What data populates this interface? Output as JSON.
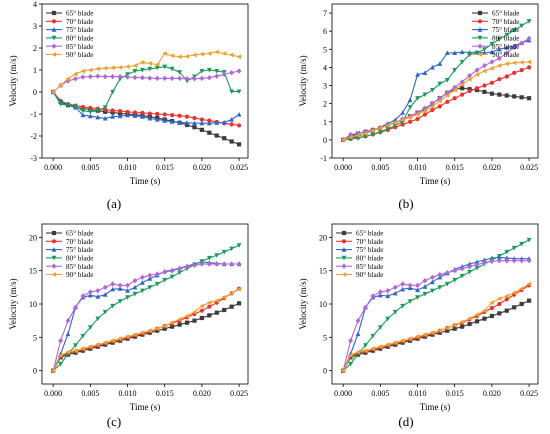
{
  "panel_labels": [
    "(a)",
    "(b)",
    "(c)",
    "(d)"
  ],
  "colors": {
    "65° blade": "#3c3c3c",
    "70° blade": "#e8322d",
    "75° blade": "#2f67c6",
    "80° blade": "#1a9a5a",
    "85° blade": "#b067d8",
    "90° blade": "#f0a030"
  },
  "chart_data": [
    {
      "type": "line",
      "xlabel": "Time (s)",
      "ylabel": "Velocity (m/s)",
      "xlim": [
        -0.0015,
        0.0262
      ],
      "ylim": [
        -3,
        4
      ],
      "xticks": [
        "0.000",
        "0.005",
        "0.010",
        "0.015",
        "0.020",
        "0.025"
      ],
      "yticks": [
        "-3",
        "-2",
        "-1",
        "0",
        "1",
        "2",
        "3",
        "4"
      ],
      "legend": "top-left",
      "x": [
        0,
        0.001,
        0.002,
        0.003,
        0.004,
        0.005,
        0.006,
        0.007,
        0.008,
        0.009,
        0.01,
        0.011,
        0.012,
        0.013,
        0.014,
        0.015,
        0.016,
        0.017,
        0.018,
        0.019,
        0.02,
        0.021,
        0.022,
        0.023,
        0.024,
        0.025
      ],
      "series": [
        {
          "name": "65° blade",
          "values": [
            0,
            -0.45,
            -0.6,
            -0.7,
            -0.75,
            -0.8,
            -0.85,
            -0.9,
            -0.93,
            -0.97,
            -1.0,
            -1.03,
            -1.07,
            -1.12,
            -1.18,
            -1.25,
            -1.32,
            -1.4,
            -1.5,
            -1.6,
            -1.72,
            -1.85,
            -1.98,
            -2.1,
            -2.25,
            -2.38
          ]
        },
        {
          "name": "70° blade",
          "values": [
            0,
            -0.4,
            -0.55,
            -0.62,
            -0.68,
            -0.72,
            -0.76,
            -0.8,
            -0.84,
            -0.87,
            -0.9,
            -0.93,
            -0.95,
            -0.98,
            -1.0,
            -1.02,
            -1.05,
            -1.08,
            -1.12,
            -1.18,
            -1.25,
            -1.3,
            -1.36,
            -1.42,
            -1.47,
            -1.52
          ]
        },
        {
          "name": "75° blade",
          "values": [
            0,
            -0.45,
            -0.55,
            -0.7,
            -1.05,
            -1.1,
            -1.15,
            -1.2,
            -1.12,
            -1.1,
            -1.05,
            -1.08,
            -1.12,
            -1.2,
            -1.25,
            -1.3,
            -1.35,
            -1.38,
            -1.4,
            -1.42,
            -1.42,
            -1.42,
            -1.4,
            -1.38,
            -1.25,
            -1.02
          ]
        },
        {
          "name": "80° blade",
          "values": [
            0,
            -0.55,
            -0.6,
            -0.65,
            -0.85,
            -0.9,
            -0.85,
            -0.7,
            0.0,
            0.6,
            0.8,
            0.95,
            1.0,
            1.05,
            1.1,
            1.15,
            1.05,
            0.9,
            0.5,
            0.7,
            0.95,
            1.0,
            0.95,
            0.9,
            0.02,
            0.02
          ]
        },
        {
          "name": "85° blade",
          "values": [
            0,
            0.3,
            0.5,
            0.6,
            0.68,
            0.7,
            0.72,
            0.7,
            0.7,
            0.7,
            0.68,
            0.66,
            0.65,
            0.63,
            0.62,
            0.62,
            0.62,
            0.62,
            0.6,
            0.6,
            0.62,
            0.65,
            0.72,
            0.8,
            0.88,
            0.95
          ]
        },
        {
          "name": "90° blade",
          "values": [
            0,
            0.3,
            0.6,
            0.82,
            0.95,
            1.0,
            1.05,
            1.08,
            1.1,
            1.12,
            1.15,
            1.2,
            1.35,
            1.3,
            1.25,
            1.75,
            1.65,
            1.6,
            1.62,
            1.68,
            1.72,
            1.75,
            1.82,
            1.75,
            1.68,
            1.6
          ]
        }
      ]
    },
    {
      "type": "line",
      "xlabel": "Time (s)",
      "ylabel": "Velocity (m/s)",
      "xlim": [
        -0.0015,
        0.0262
      ],
      "ylim": [
        -1,
        7.5
      ],
      "xticks": [
        "0.000",
        "0.005",
        "0.010",
        "0.015",
        "0.020",
        "0.025"
      ],
      "yticks": [
        "-1",
        "0",
        "1",
        "2",
        "3",
        "4",
        "5",
        "6",
        "7"
      ],
      "legend": "top-right",
      "x": [
        0,
        0.001,
        0.002,
        0.003,
        0.004,
        0.005,
        0.006,
        0.007,
        0.008,
        0.009,
        0.01,
        0.011,
        0.012,
        0.013,
        0.014,
        0.015,
        0.016,
        0.017,
        0.018,
        0.019,
        0.02,
        0.021,
        0.022,
        0.023,
        0.024,
        0.025
      ],
      "series": [
        {
          "name": "65° blade",
          "values": [
            0,
            0.2,
            0.35,
            0.45,
            0.55,
            0.65,
            0.8,
            0.95,
            1.1,
            1.3,
            1.5,
            1.7,
            2.0,
            2.3,
            2.6,
            2.8,
            2.85,
            2.8,
            2.75,
            2.65,
            2.55,
            2.5,
            2.45,
            2.4,
            2.35,
            2.3
          ]
        },
        {
          "name": "70° blade",
          "values": [
            0,
            0.05,
            0.12,
            0.2,
            0.3,
            0.42,
            0.55,
            0.7,
            0.85,
            1.0,
            1.15,
            1.4,
            1.65,
            1.85,
            2.1,
            2.3,
            2.5,
            2.7,
            2.85,
            3.0,
            3.15,
            3.35,
            3.5,
            3.7,
            3.85,
            4.0
          ]
        },
        {
          "name": "75° blade",
          "values": [
            0,
            0.1,
            0.2,
            0.35,
            0.5,
            0.7,
            0.9,
            1.1,
            1.5,
            2.2,
            3.6,
            3.7,
            4.0,
            4.2,
            4.8,
            4.8,
            4.85,
            4.82,
            4.85,
            4.8,
            4.85,
            5.0,
            5.1,
            5.2,
            5.35,
            5.5
          ]
        },
        {
          "name": "80° blade",
          "values": [
            0,
            0.05,
            0.1,
            0.2,
            0.3,
            0.45,
            0.6,
            0.8,
            1.0,
            1.8,
            2.3,
            2.5,
            2.75,
            3.1,
            3.3,
            3.85,
            4.3,
            4.7,
            4.8,
            5.0,
            5.3,
            5.55,
            5.8,
            6.05,
            6.3,
            6.55
          ]
        },
        {
          "name": "85° blade",
          "values": [
            0,
            0.3,
            0.35,
            0.45,
            0.55,
            0.65,
            0.8,
            0.95,
            1.15,
            1.3,
            1.5,
            1.75,
            2.0,
            2.3,
            2.6,
            2.9,
            3.2,
            3.55,
            3.85,
            4.1,
            4.3,
            4.5,
            4.8,
            5.1,
            5.35,
            5.6
          ]
        },
        {
          "name": "90° blade",
          "values": [
            0,
            0.15,
            0.25,
            0.35,
            0.5,
            0.65,
            0.8,
            0.95,
            1.1,
            1.25,
            1.4,
            1.6,
            1.85,
            2.15,
            2.45,
            2.75,
            3.05,
            3.35,
            3.6,
            3.8,
            3.95,
            4.1,
            4.2,
            4.25,
            4.28,
            4.3
          ]
        }
      ]
    },
    {
      "type": "line",
      "xlabel": "Time (s)",
      "ylabel": "Velocity (m/s)",
      "xlim": [
        -0.0015,
        0.0262
      ],
      "ylim": [
        -2,
        22
      ],
      "xticks": [
        "0.000",
        "0.005",
        "0.010",
        "0.015",
        "0.020",
        "0.025"
      ],
      "yticks": [
        "0",
        "5",
        "10",
        "15",
        "20"
      ],
      "legend": "top-left",
      "x": [
        0,
        0.001,
        0.002,
        0.003,
        0.004,
        0.005,
        0.006,
        0.007,
        0.008,
        0.009,
        0.01,
        0.011,
        0.012,
        0.013,
        0.014,
        0.015,
        0.016,
        0.017,
        0.018,
        0.019,
        0.02,
        0.021,
        0.022,
        0.023,
        0.024,
        0.025
      ],
      "series": [
        {
          "name": "65° blade",
          "values": [
            0,
            2.0,
            2.4,
            2.7,
            3.0,
            3.3,
            3.6,
            3.9,
            4.2,
            4.5,
            4.8,
            5.1,
            5.4,
            5.7,
            6.0,
            6.3,
            6.6,
            6.9,
            7.2,
            7.5,
            7.9,
            8.3,
            8.7,
            9.1,
            9.6,
            10.1
          ]
        },
        {
          "name": "70° blade",
          "values": [
            0,
            2.2,
            2.6,
            2.9,
            3.2,
            3.5,
            3.8,
            4.1,
            4.4,
            4.7,
            5.0,
            5.3,
            5.6,
            5.9,
            6.3,
            6.7,
            7.1,
            7.5,
            8.0,
            8.5,
            9.0,
            9.6,
            10.2,
            10.9,
            11.6,
            12.3
          ]
        },
        {
          "name": "75° blade",
          "values": [
            0,
            2.5,
            5.5,
            9.5,
            11.0,
            11.3,
            11.1,
            11.4,
            12.2,
            12.3,
            12.0,
            12.5,
            13.2,
            13.8,
            14.3,
            14.9,
            15.1,
            15.4,
            15.7,
            16.0,
            16.3,
            16.2,
            16.1,
            16.0,
            16.0,
            16.0
          ]
        },
        {
          "name": "80° blade",
          "values": [
            0,
            1.0,
            2.5,
            3.8,
            5.2,
            6.5,
            7.8,
            8.8,
            9.7,
            10.4,
            11.0,
            11.5,
            12.0,
            12.5,
            13.0,
            13.6,
            14.1,
            14.7,
            15.3,
            15.9,
            16.4,
            16.9,
            17.3,
            17.8,
            18.3,
            18.8
          ]
        },
        {
          "name": "85° blade",
          "values": [
            0,
            4.5,
            7.5,
            9.5,
            11.2,
            11.8,
            12.0,
            12.5,
            13.0,
            12.8,
            12.8,
            13.5,
            14.0,
            14.3,
            14.5,
            14.8,
            15.0,
            15.3,
            15.6,
            15.8,
            16.0,
            16.0,
            16.0,
            16.0,
            16.0,
            16.0
          ]
        },
        {
          "name": "90° blade",
          "values": [
            0,
            2.3,
            2.8,
            3.0,
            3.3,
            3.6,
            3.9,
            4.2,
            4.5,
            4.8,
            5.1,
            5.4,
            5.7,
            6.0,
            6.3,
            6.7,
            7.2,
            7.7,
            8.2,
            8.8,
            9.7,
            10.2,
            10.5,
            11.0,
            11.6,
            12.2
          ]
        }
      ]
    },
    {
      "type": "line",
      "xlabel": "Time (s)",
      "ylabel": "Velocity (m/s)",
      "xlim": [
        -0.0015,
        0.0262
      ],
      "ylim": [
        -2,
        22
      ],
      "xticks": [
        "0.000",
        "0.005",
        "0.010",
        "0.015",
        "0.020",
        "0.025"
      ],
      "yticks": [
        "0",
        "5",
        "10",
        "15",
        "20"
      ],
      "legend": "top-left",
      "x": [
        0,
        0.001,
        0.002,
        0.003,
        0.004,
        0.005,
        0.006,
        0.007,
        0.008,
        0.009,
        0.01,
        0.011,
        0.012,
        0.013,
        0.014,
        0.015,
        0.016,
        0.017,
        0.018,
        0.019,
        0.02,
        0.021,
        0.022,
        0.023,
        0.024,
        0.025
      ],
      "series": [
        {
          "name": "65° blade",
          "values": [
            0,
            2.0,
            2.4,
            2.7,
            3.0,
            3.3,
            3.6,
            3.9,
            4.2,
            4.5,
            4.8,
            5.1,
            5.4,
            5.7,
            6.0,
            6.3,
            6.6,
            7.0,
            7.4,
            7.8,
            8.2,
            8.6,
            9.0,
            9.5,
            10.0,
            10.5
          ]
        },
        {
          "name": "70° blade",
          "values": [
            0,
            2.2,
            2.6,
            2.9,
            3.2,
            3.5,
            3.8,
            4.1,
            4.4,
            4.7,
            5.0,
            5.3,
            5.6,
            6.0,
            6.4,
            6.8,
            7.2,
            7.7,
            8.2,
            8.8,
            9.4,
            10.0,
            10.7,
            11.4,
            12.1,
            12.8
          ]
        },
        {
          "name": "75° blade",
          "values": [
            0,
            2.5,
            5.5,
            9.5,
            11.0,
            11.3,
            11.2,
            11.6,
            12.2,
            12.4,
            12.1,
            12.6,
            13.3,
            14.0,
            14.6,
            15.2,
            15.6,
            16.0,
            16.3,
            16.6,
            16.9,
            17.0,
            16.9,
            16.8,
            16.8,
            16.8
          ]
        },
        {
          "name": "80° blade",
          "values": [
            0,
            1.0,
            2.5,
            3.8,
            5.2,
            6.5,
            7.8,
            8.8,
            9.7,
            10.4,
            11.0,
            11.5,
            12.0,
            12.5,
            13.0,
            13.6,
            14.2,
            14.8,
            15.4,
            16.0,
            16.6,
            17.2,
            17.8,
            18.4,
            19.0,
            19.6
          ]
        },
        {
          "name": "85° blade",
          "values": [
            0,
            4.5,
            7.5,
            9.5,
            11.2,
            11.8,
            12.0,
            12.5,
            13.0,
            12.8,
            12.8,
            13.5,
            14.0,
            14.4,
            14.7,
            15.0,
            15.3,
            15.6,
            15.9,
            16.2,
            16.4,
            16.5,
            16.5,
            16.5,
            16.5,
            16.5
          ]
        },
        {
          "name": "90° blade",
          "values": [
            0,
            2.3,
            2.8,
            3.0,
            3.3,
            3.6,
            3.9,
            4.2,
            4.5,
            4.8,
            5.1,
            5.4,
            5.7,
            6.0,
            6.4,
            6.8,
            7.3,
            7.8,
            8.4,
            9.0,
            10.2,
            10.8,
            11.2,
            11.7,
            12.3,
            13.0
          ]
        }
      ]
    }
  ]
}
